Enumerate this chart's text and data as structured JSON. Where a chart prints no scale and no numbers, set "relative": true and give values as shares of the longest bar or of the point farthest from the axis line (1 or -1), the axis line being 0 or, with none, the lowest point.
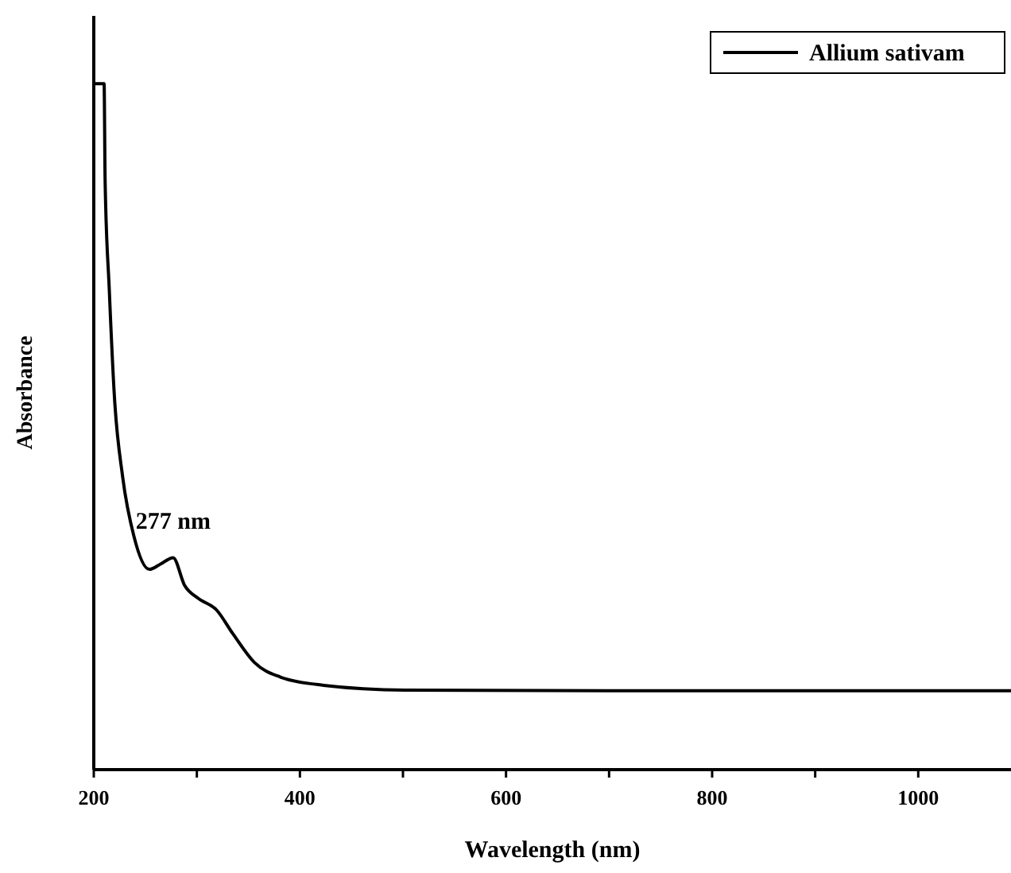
{
  "chart_data": {
    "type": "line",
    "xlabel": "Wavelength (nm)",
    "ylabel": "Absorbance",
    "relative": true,
    "xlim": [
      200,
      1090
    ],
    "xticks": [
      200,
      {
        "value": 300,
        "label": null
      },
      400,
      {
        "value": 500,
        "label": null
      },
      600,
      {
        "value": 700,
        "label": null
      },
      800,
      {
        "value": 900,
        "label": null
      },
      1000
    ],
    "legend": "top right",
    "line_style": "solid",
    "annotations": [
      {
        "text": "277 nm",
        "x": 277,
        "y": 0.309
      }
    ],
    "series": [
      {
        "name": "Allium sativam",
        "color": "#000000",
        "x": [
          200,
          210,
          211,
          215,
          220,
          228,
          239,
          254,
          265,
          277,
          288,
          301,
          319,
          335,
          356,
          381,
          423,
          502,
          700,
          900,
          1090
        ],
        "values": [
          1.0,
          1.0,
          0.858,
          0.701,
          0.544,
          0.427,
          0.34,
          0.292,
          0.3,
          0.309,
          0.269,
          0.25,
          0.233,
          0.198,
          0.156,
          0.135,
          0.123,
          0.116,
          0.115,
          0.115,
          0.115
        ]
      }
    ]
  }
}
